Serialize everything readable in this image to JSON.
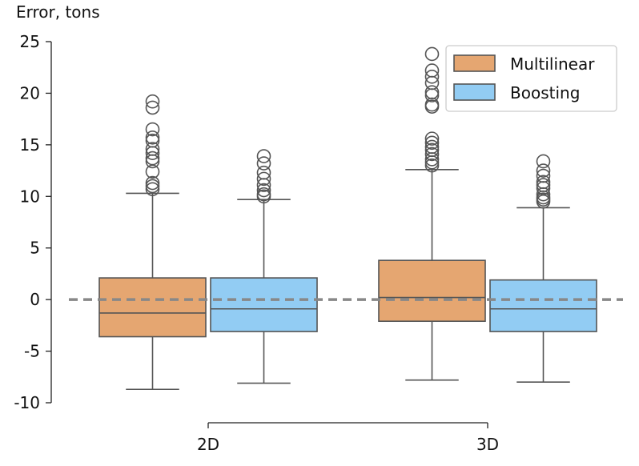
{
  "chart_data": {
    "type": "box",
    "ylabel": "Error, tons",
    "xlabel": "",
    "categories": [
      "2D",
      "3D"
    ],
    "ylim": [
      -10,
      25
    ],
    "yticks": [
      -10,
      -5,
      0,
      5,
      10,
      15,
      20,
      25
    ],
    "reference_line": {
      "y": 0,
      "style": "dashed",
      "color": "#888888"
    },
    "legend": {
      "position": "top-right"
    },
    "grid": false,
    "series": [
      {
        "name": "Multilinear",
        "color": "#E5A671",
        "boxes": [
          {
            "category": "2D",
            "whisker_low": -8.7,
            "q1": -3.6,
            "median": -1.3,
            "q3": 2.1,
            "whisker_high": 10.3,
            "outliers": [
              19.2,
              18.6,
              16.5,
              15.7,
              15.4,
              14.6,
              14.2,
              13.7,
              13.4,
              12.4,
              11.3,
              11.0,
              10.7
            ]
          },
          {
            "category": "3D",
            "whisker_low": -7.8,
            "q1": -2.1,
            "median": 0.2,
            "q3": 3.8,
            "whisker_high": 12.6,
            "outliers": [
              23.8,
              22.2,
              21.6,
              21.0,
              20.1,
              19.8,
              18.9,
              18.7,
              15.6,
              15.2,
              14.8,
              14.5,
              14.1,
              13.6,
              13.3,
              13.0
            ]
          }
        ]
      },
      {
        "name": "Boosting",
        "color": "#92CCF3",
        "boxes": [
          {
            "category": "2D",
            "whisker_low": -8.1,
            "q1": -3.1,
            "median": -0.9,
            "q3": 2.1,
            "whisker_high": 9.7,
            "outliers": [
              13.9,
              13.2,
              12.3,
              11.7,
              11.1,
              10.6,
              10.2,
              10.0
            ]
          },
          {
            "category": "3D",
            "whisker_low": -8.0,
            "q1": -3.1,
            "median": -0.9,
            "q3": 1.9,
            "whisker_high": 8.9,
            "outliers": [
              13.4,
              12.5,
              12.0,
              11.4,
              11.1,
              10.8,
              10.2,
              9.9,
              9.7,
              9.5
            ]
          }
        ]
      }
    ]
  }
}
